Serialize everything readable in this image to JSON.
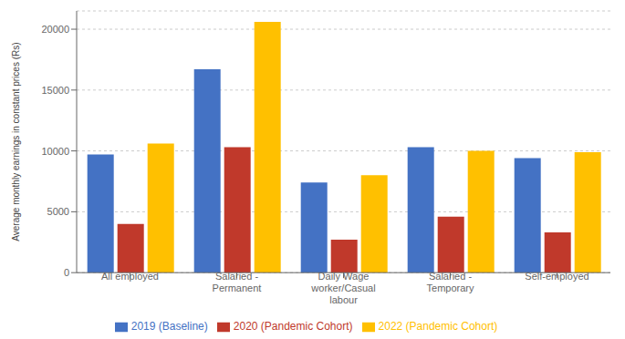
{
  "chart_data": {
    "type": "bar",
    "categories": [
      "All employed",
      "Salaried -\nPermanent",
      "Daily Wage\nworker/Casual\nlabour",
      "Salaried -\nTemporary",
      "Self-employed"
    ],
    "series": [
      {
        "name": "2019 (Baseline)",
        "color": "#4472C4",
        "values": [
          9700,
          16700,
          7400,
          10300,
          9400
        ]
      },
      {
        "name": "2020 (Pandemic Cohort)",
        "color": "#C0392B",
        "values": [
          4000,
          10300,
          2700,
          4600,
          3300
        ]
      },
      {
        "name": "2022 (Pandemic Cohort)",
        "color": "#FFC000",
        "values": [
          10600,
          20600,
          8000,
          10000,
          9900
        ]
      }
    ],
    "ylabel": "Average monthly earnings in constant prices (Rs)",
    "ylim": [
      0,
      21500
    ],
    "yticks": [
      0,
      5000,
      10000,
      15000,
      20000
    ],
    "grid": true,
    "legend": "bottom"
  }
}
